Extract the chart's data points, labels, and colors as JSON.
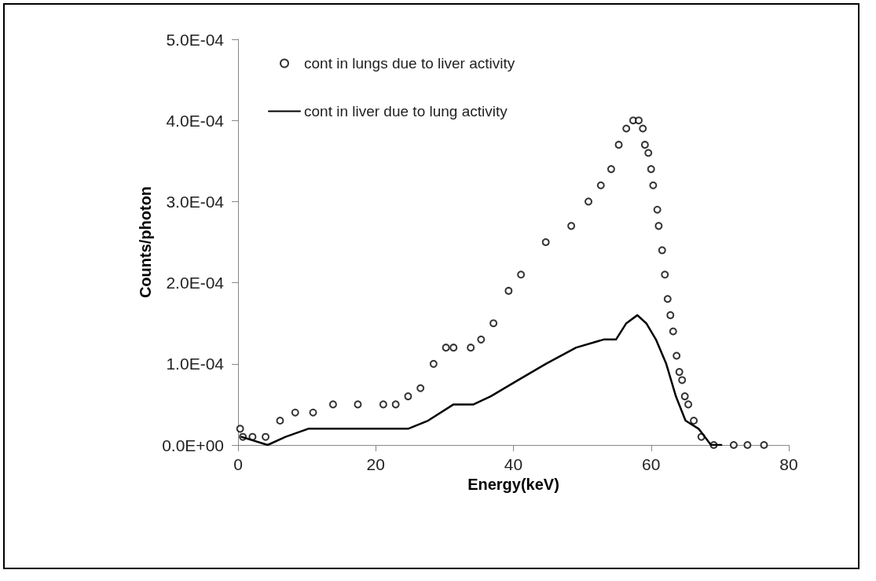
{
  "chart_data": {
    "type": "scatter",
    "xlabel": "Energy(keV)",
    "ylabel": "Counts/photon",
    "xlim": [
      0,
      80
    ],
    "xticks": [
      0,
      20,
      40,
      60,
      80
    ],
    "ylim": [
      0,
      0.0005
    ],
    "yticks": [
      {
        "value": 0,
        "label": "0.0E+00"
      },
      {
        "value": 0.0001,
        "label": "1.0E-04"
      },
      {
        "value": 0.0002,
        "label": "2.0E-04"
      },
      {
        "value": 0.0003,
        "label": "3.0E-04"
      },
      {
        "value": 0.0004,
        "label": "4.0E-04"
      },
      {
        "value": 0.0005,
        "label": "5.0E-04"
      }
    ],
    "grid": false,
    "legend": "top left",
    "marker": "circle",
    "series": [
      {
        "name": "cont in lungs due to liver activity",
        "color": "#000000",
        "x": [
          0.3,
          0.7,
          2.1,
          4.0,
          6.1,
          8.3,
          10.9,
          13.8,
          17.4,
          21.1,
          22.9,
          24.7,
          26.5,
          28.4,
          30.2,
          31.3,
          33.8,
          35.3,
          37.1,
          39.3,
          41.1,
          44.7,
          48.4,
          50.9,
          52.7,
          54.2,
          55.3,
          56.4,
          57.4,
          58.2,
          58.8,
          59.1,
          59.6,
          60.0,
          60.3,
          60.9,
          61.1,
          61.6,
          62.0,
          62.4,
          62.8,
          63.2,
          63.7,
          64.1,
          64.5,
          64.9,
          65.4,
          66.2,
          67.3,
          69.1,
          72.0,
          74.0,
          76.4
        ],
        "values": [
          2e-05,
          1e-05,
          1e-05,
          1e-05,
          3e-05,
          4e-05,
          4e-05,
          5e-05,
          5e-05,
          5e-05,
          5e-05,
          6e-05,
          7e-05,
          0.0001,
          0.00012,
          0.00012,
          0.00012,
          0.00013,
          0.00015,
          0.00019,
          0.00021,
          0.00025,
          0.00027,
          0.0003,
          0.00032,
          0.00034,
          0.00037,
          0.00039,
          0.0004,
          0.0004,
          0.00039,
          0.00037,
          0.00036,
          0.00034,
          0.00032,
          0.00029,
          0.00027,
          0.00024,
          0.00021,
          0.00018,
          0.00016,
          0.00014,
          0.00011,
          9e-05,
          8e-05,
          6e-05,
          5e-05,
          3e-05,
          1e-05,
          0,
          0,
          0,
          0
        ]
      },
      {
        "name": "cont in liver due to lung activity",
        "type": "line",
        "marker": "none",
        "line_style": "solid",
        "color": "#000000",
        "x": [
          0.5,
          4.3,
          6.9,
          10.2,
          14.5,
          24.7,
          27.6,
          31.3,
          34.2,
          36.7,
          40.7,
          44.7,
          49.1,
          53.1,
          54.9,
          56.4,
          58.0,
          59.3,
          60.7,
          62.2,
          63.6,
          65.0,
          66.9,
          68.7,
          70.2
        ],
        "values": [
          1e-05,
          0,
          1e-05,
          2e-05,
          2e-05,
          2e-05,
          3e-05,
          5e-05,
          5e-05,
          6e-05,
          8e-05,
          0.0001,
          0.00012,
          0.00013,
          0.00013,
          0.00015,
          0.00016,
          0.00015,
          0.00013,
          0.0001,
          6e-05,
          3e-05,
          2e-05,
          0,
          0
        ]
      }
    ]
  }
}
